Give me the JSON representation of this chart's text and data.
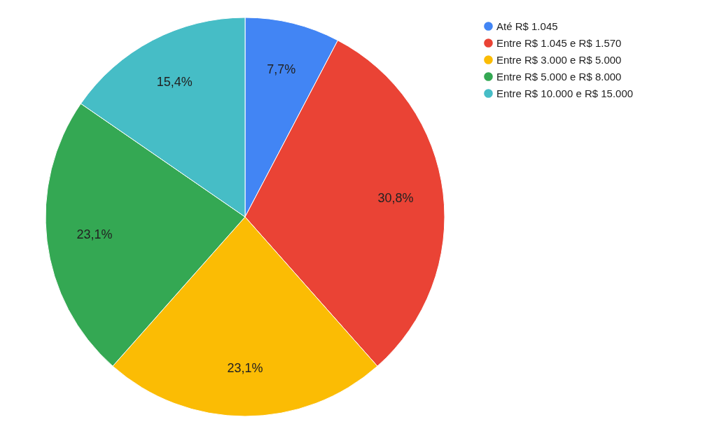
{
  "chart_data": {
    "type": "pie",
    "categories": [
      "Até R$ 1.045",
      "Entre R$ 1.045 e R$ 1.570",
      "Entre R$ 3.000 e R$ 5.000",
      "Entre R$ 5.000 e R$ 8.000",
      "Entre R$ 10.000 e R$ 15.000"
    ],
    "values": [
      7.7,
      30.8,
      23.1,
      23.1,
      15.4
    ],
    "value_labels": [
      "7,7%",
      "30,8%",
      "23,1%",
      "23,1%",
      "15,4%"
    ],
    "colors": [
      "#4285f4",
      "#ea4335",
      "#fbbc04",
      "#34a853",
      "#46bdc6"
    ],
    "legend": "top right"
  }
}
